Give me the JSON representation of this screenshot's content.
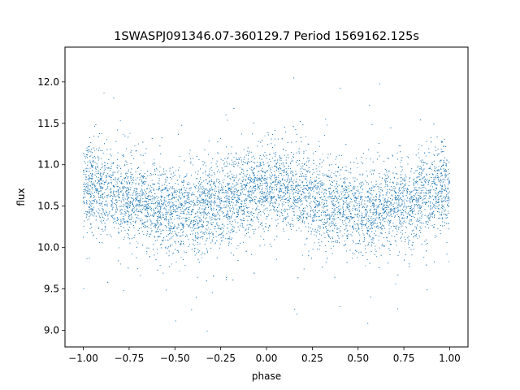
{
  "chart_data": {
    "type": "scatter",
    "title": "1SWASPJ091346.07-360129.7 Period 1569162.125s",
    "xlabel": "phase",
    "ylabel": "flux",
    "xlim": [
      -1.1,
      1.1
    ],
    "ylim": [
      8.8,
      12.42
    ],
    "xticks": [
      -1.0,
      -0.75,
      -0.5,
      -0.25,
      0.0,
      0.25,
      0.5,
      0.75,
      1.0
    ],
    "xtick_labels": [
      "−1.00",
      "−0.75",
      "−0.50",
      "−0.25",
      "0.00",
      "0.25",
      "0.50",
      "0.75",
      "1.00"
    ],
    "yticks": [
      9.0,
      9.5,
      10.0,
      10.5,
      11.0,
      11.5,
      12.0
    ],
    "ytick_labels": [
      "9.0",
      "9.5",
      "10.0",
      "10.5",
      "11.0",
      "11.5",
      "12.0"
    ],
    "grid": false,
    "legend": "none",
    "marker_color": "#1f77b4",
    "series": [
      {
        "x": [
          -1.0,
          -0.9,
          -0.8,
          -0.7,
          -0.6,
          -0.5,
          -0.4,
          -0.3,
          -0.2,
          -0.1,
          0.0,
          0.1,
          0.2,
          0.3,
          0.4,
          0.5,
          0.6,
          0.7,
          0.8,
          0.9,
          1.0
        ],
        "y": [
          10.75,
          10.7,
          10.65,
          10.55,
          10.5,
          10.45,
          10.45,
          10.5,
          10.55,
          10.65,
          10.75,
          10.7,
          10.65,
          10.55,
          10.5,
          10.45,
          10.45,
          10.5,
          10.55,
          10.65,
          10.75
        ],
        "spread": 0.25,
        "n_points": 12000
      }
    ]
  }
}
